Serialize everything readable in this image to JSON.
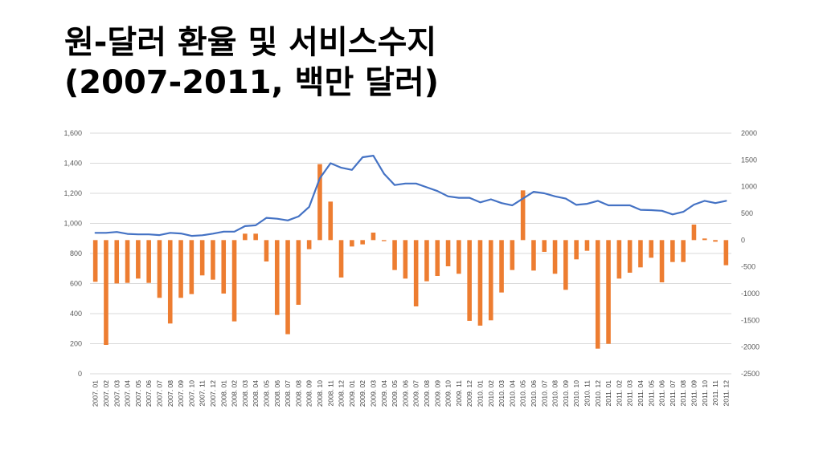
{
  "title": {
    "line1": "원-달러 환율 및 서비스수지",
    "line2": "(2007-2011, 백만 달러)"
  },
  "colors": {
    "line": "#4472C4",
    "bar": "#ED7D31",
    "grid": "#D9D9D9",
    "axis_text": "#595959"
  },
  "chart_data": {
    "type": "bar",
    "categories": [
      "2007. 01",
      "2007. 02",
      "2007. 03",
      "2007. 04",
      "2007. 05",
      "2007. 06",
      "2007. 07",
      "2007. 08",
      "2007. 09",
      "2007. 10",
      "2007. 11",
      "2007. 12",
      "2008. 01",
      "2008. 02",
      "2008. 03",
      "2008. 04",
      "2008. 05",
      "2008. 06",
      "2008. 07",
      "2008. 08",
      "2008. 09",
      "2008. 10",
      "2008. 11",
      "2008. 12",
      "2009. 01",
      "2009. 02",
      "2009. 03",
      "2009. 04",
      "2009. 05",
      "2009. 06",
      "2009. 07",
      "2009. 08",
      "2009. 09",
      "2009. 10",
      "2009. 11",
      "2009. 12",
      "2010. 01",
      "2010. 02",
      "2010. 03",
      "2010. 04",
      "2010. 05",
      "2010. 06",
      "2010. 07",
      "2010. 08",
      "2010. 09",
      "2010. 10",
      "2010. 11",
      "2010. 12",
      "2011. 01",
      "2011. 02",
      "2011. 03",
      "2011. 04",
      "2011. 05",
      "2011. 06",
      "2011. 07",
      "2011. 08",
      "2011. 09",
      "2011. 10",
      "2011. 11",
      "2011. 12"
    ],
    "series": [
      {
        "type": "line",
        "axis": "left",
        "values": [
          937,
          937,
          943,
          930,
          927,
          927,
          922,
          937,
          933,
          917,
          921,
          932,
          945,
          945,
          982,
          987,
          1037,
          1031,
          1020,
          1046,
          1110,
          1300,
          1400,
          1370,
          1356,
          1440,
          1450,
          1330,
          1255,
          1265,
          1265,
          1240,
          1215,
          1180,
          1170,
          1170,
          1140,
          1160,
          1135,
          1120,
          1165,
          1210,
          1200,
          1180,
          1165,
          1123,
          1130,
          1150,
          1120,
          1120,
          1120,
          1090,
          1088,
          1084,
          1060,
          1077,
          1125,
          1150,
          1135,
          1150
        ]
      },
      {
        "type": "bar",
        "axis": "right",
        "values": [
          -780,
          -1960,
          -810,
          -800,
          -720,
          -800,
          -1080,
          -1560,
          -1080,
          -1010,
          -660,
          -740,
          -1000,
          -1520,
          120,
          120,
          -400,
          -1400,
          -1760,
          -1210,
          -170,
          1420,
          720,
          -700,
          -120,
          -80,
          140,
          -20,
          -560,
          -720,
          -1240,
          -770,
          -670,
          -490,
          -630,
          -1510,
          -1600,
          -1500,
          -980,
          -560,
          930,
          -570,
          -220,
          -630,
          -930,
          -360,
          -200,
          -2030,
          -1940,
          -720,
          -610,
          -510,
          -330,
          -790,
          -410,
          -410,
          290,
          30,
          -30,
          -470
        ]
      }
    ],
    "y_left": {
      "min": 0,
      "max": 1600,
      "ticks": [
        "0",
        "200",
        "400",
        "600",
        "800",
        "1,000",
        "1,200",
        "1,400",
        "1,600"
      ]
    },
    "y_right": {
      "min": -2500,
      "max": 2000,
      "ticks": [
        "-2500",
        "-2000",
        "-1500",
        "-1000",
        "-500",
        "0",
        "500",
        "1000",
        "1500",
        "2000"
      ]
    },
    "grid": true,
    "legend": "none"
  }
}
